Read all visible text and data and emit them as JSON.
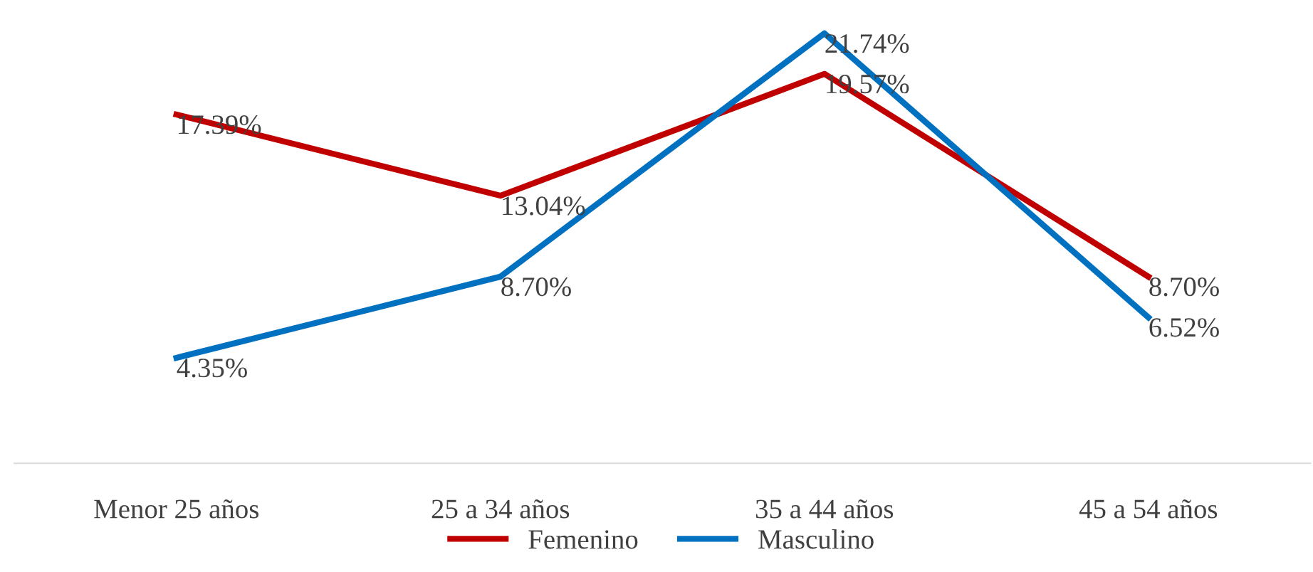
{
  "chart_data": {
    "type": "line",
    "categories": [
      "Menor 25 años",
      "25 a 34 años",
      "35 a 44 años",
      "45 a 54 años"
    ],
    "series": [
      {
        "name": "Femenino",
        "color": "#c00000",
        "values": [
          17.39,
          13.04,
          19.57,
          8.7
        ],
        "value_labels": [
          "17.39%",
          "13.04%",
          "19.57%",
          "8.70%"
        ]
      },
      {
        "name": "Masculino",
        "color": "#0070c0",
        "values": [
          4.35,
          8.7,
          21.74,
          6.52
        ],
        "value_labels": [
          "4.35%",
          "8.70%",
          "21.74%",
          "6.52%"
        ]
      }
    ],
    "grid": false,
    "legend": "bottom",
    "marker": "none",
    "line_style": "solid"
  }
}
